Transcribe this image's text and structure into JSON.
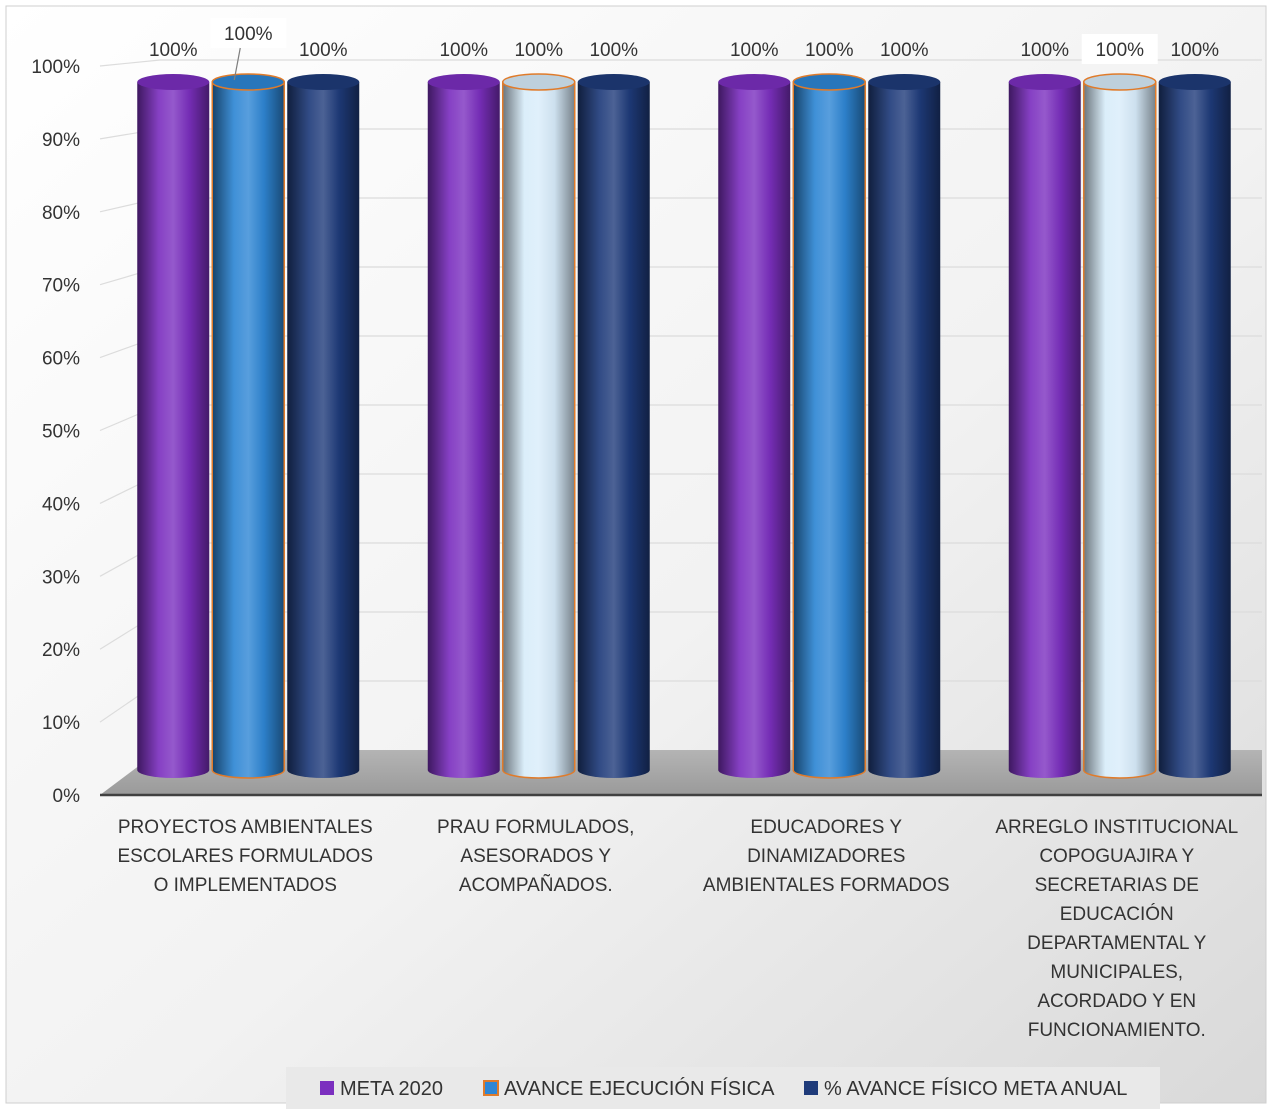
{
  "chart_data": {
    "type": "bar",
    "style": "3d-cylinder",
    "categories": [
      [
        "PROYECTOS AMBIENTALES",
        "ESCOLARES FORMULADOS",
        "O IMPLEMENTADOS"
      ],
      [
        "PRAU FORMULADOS,",
        "ASESORADOS Y",
        "ACOMPAÑADOS."
      ],
      [
        "EDUCADORES Y",
        "DINAMIZADORES",
        "AMBIENTALES FORMADOS"
      ],
      [
        "ARREGLO INSTITUCIONAL",
        "COPOGUAJIRA Y",
        "SECRETARIAS DE",
        "EDUCACIÓN",
        "DEPARTAMENTAL Y",
        "MUNICIPALES,",
        "ACORDADO Y EN",
        "FUNCIONAMIENTO."
      ]
    ],
    "series": [
      {
        "name": "META 2020",
        "values": [
          100,
          100,
          100,
          100
        ],
        "labels": [
          "100%",
          "100%",
          "100%",
          "100%"
        ],
        "color": "#7b2fbf"
      },
      {
        "name": "AVANCE EJECUCIÓN FÍSICA",
        "values": [
          100,
          100,
          100,
          100
        ],
        "labels": [
          "100%",
          "100%",
          "100%",
          "100%"
        ],
        "color": "#2e86d4",
        "point_colors": [
          "#2e86d4",
          "#d8ecfa",
          "#2e86d4",
          "#d8ecfa"
        ],
        "border_color": "#e07b2a"
      },
      {
        "name": "% AVANCE FÍSICO META ANUAL",
        "values": [
          100,
          100,
          100,
          100
        ],
        "labels": [
          "100%",
          "100%",
          "100%",
          "100%"
        ],
        "color": "#1f3b7a"
      }
    ],
    "yticks": [
      "0%",
      "10%",
      "20%",
      "30%",
      "40%",
      "50%",
      "60%",
      "70%",
      "80%",
      "90%",
      "100%"
    ],
    "ylim": [
      0,
      100
    ],
    "grid": true,
    "legend_position": "bottom"
  }
}
